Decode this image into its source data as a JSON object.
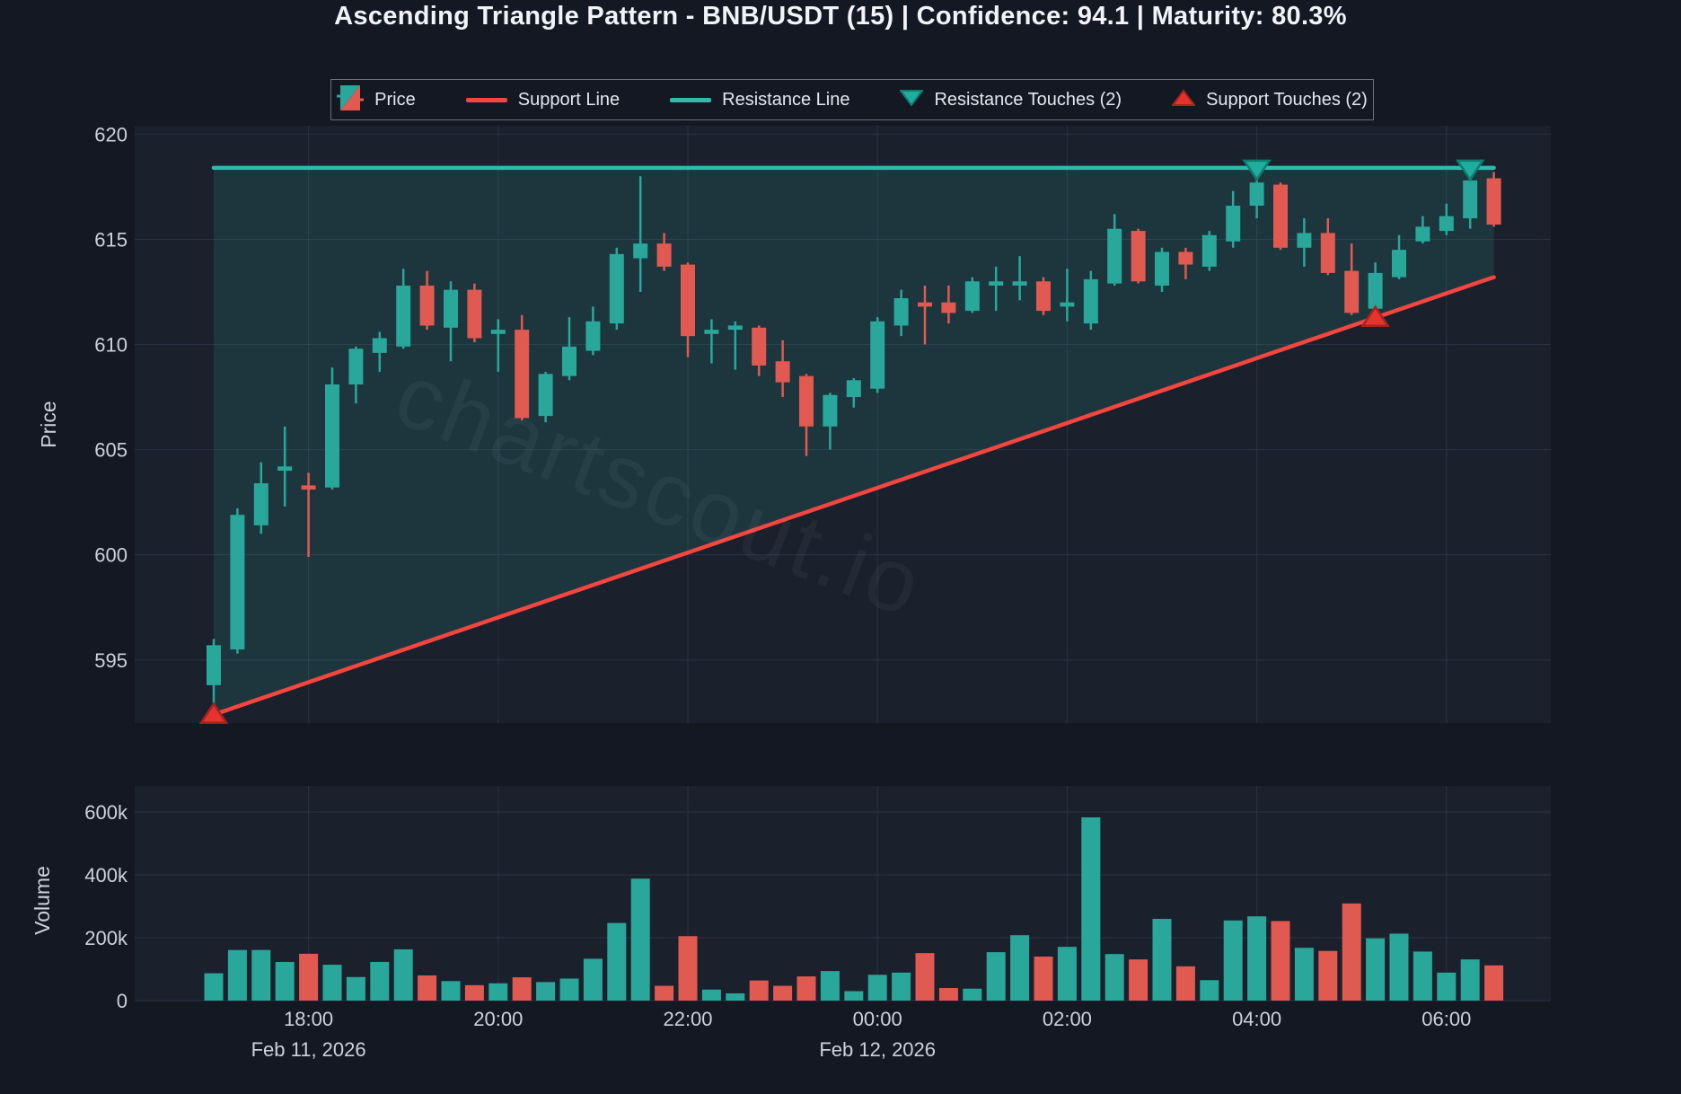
{
  "header": {
    "title": "Ascending Triangle Pattern - BNB/USDT (15) | Confidence: 94.1 | Maturity: 80.3%"
  },
  "legend": {
    "items": [
      {
        "label": "Price",
        "icon": "candlestick-icon"
      },
      {
        "label": "Support Line",
        "icon": "support-line-icon"
      },
      {
        "label": "Resistance Line",
        "icon": "resistance-line-icon"
      },
      {
        "label": "Resistance Touches (2)",
        "icon": "resistance-touch-icon"
      },
      {
        "label": "Support Touches (2)",
        "icon": "support-touch-icon"
      }
    ]
  },
  "watermark": {
    "text": "chartscout.io"
  },
  "colors": {
    "page_bg": "#141823",
    "plot_bg": "#1b212c",
    "grid": "#2a3142",
    "bull": "#2aa79b",
    "bear": "#e05a52",
    "support_line": "#f4453f",
    "resistance_line": "#2cbcac",
    "triangle_fill": "rgba(42,167,155,0.16)",
    "resistance_marker": "#1fae9e",
    "resistance_marker_edge": "#0e7d70",
    "support_marker": "#e5342e",
    "support_marker_edge": "#a8221e",
    "axis_text": "#ccd1dd",
    "title_text": "#f1f3f8"
  },
  "axes": {
    "price_axis": {
      "label": "Price",
      "ticks": [
        {
          "value": 620,
          "label": "620"
        },
        {
          "value": 615,
          "label": "615"
        },
        {
          "value": 610,
          "label": "610"
        },
        {
          "value": 605,
          "label": "605"
        },
        {
          "value": 600,
          "label": "600"
        },
        {
          "value": 595,
          "label": "595"
        }
      ]
    },
    "volume_axis": {
      "label": "Volume",
      "ticks": [
        {
          "value": 600000,
          "label": "600k"
        },
        {
          "value": 400000,
          "label": "400k"
        },
        {
          "value": 200000,
          "label": "200k"
        },
        {
          "value": 0,
          "label": "0"
        }
      ]
    },
    "time_axis": {
      "ticks": [
        {
          "index": 4,
          "label": "18:00"
        },
        {
          "index": 12,
          "label": "20:00"
        },
        {
          "index": 20,
          "label": "22:00"
        },
        {
          "index": 28,
          "label": "00:00"
        },
        {
          "index": 36,
          "label": "02:00"
        },
        {
          "index": 44,
          "label": "04:00"
        },
        {
          "index": 52,
          "label": "06:00"
        }
      ],
      "dates": [
        {
          "index": 4,
          "label": "Feb 11, 2026"
        },
        {
          "index": 28,
          "label": "Feb 12, 2026"
        }
      ]
    }
  },
  "chart_data": {
    "type": "candlestick",
    "title": "Ascending Triangle Pattern - BNB/USDT (15) | Confidence: 94.1 | Maturity: 80.3%",
    "pattern": "Ascending Triangle",
    "confidence": 94.1,
    "maturity_pct": 80.3,
    "price_ylim": [
      592.0,
      620.4
    ],
    "volume_ylim": [
      0,
      683000
    ],
    "resistance_line": {
      "price": 618.4,
      "from_index": 0,
      "to_index": 54
    },
    "support_line": {
      "from_index": 0,
      "from_price": 592.4,
      "to_index": 54,
      "to_price": 613.2
    },
    "resistance_touches": {
      "count": 2,
      "candle_indices": [
        44,
        53
      ]
    },
    "support_touches": {
      "count": 2,
      "candle_indices": [
        0,
        49
      ]
    },
    "candles": [
      {
        "t": "17:00",
        "o": 593.8,
        "h": 596.0,
        "l": 592.5,
        "c": 595.7,
        "v": 87000
      },
      {
        "t": "17:15",
        "o": 595.5,
        "h": 602.2,
        "l": 595.3,
        "c": 601.9,
        "v": 161000
      },
      {
        "t": "17:30",
        "o": 601.4,
        "h": 604.4,
        "l": 601.0,
        "c": 603.4,
        "v": 161000
      },
      {
        "t": "17:45",
        "o": 604.0,
        "h": 606.1,
        "l": 602.3,
        "c": 604.2,
        "v": 123000
      },
      {
        "t": "18:00",
        "o": 603.3,
        "h": 603.9,
        "l": 599.9,
        "c": 603.1,
        "v": 149000
      },
      {
        "t": "18:15",
        "o": 603.2,
        "h": 608.9,
        "l": 603.1,
        "c": 608.1,
        "v": 114000
      },
      {
        "t": "18:30",
        "o": 608.1,
        "h": 609.9,
        "l": 607.2,
        "c": 609.8,
        "v": 75000
      },
      {
        "t": "18:45",
        "o": 609.6,
        "h": 610.6,
        "l": 608.7,
        "c": 610.3,
        "v": 123000
      },
      {
        "t": "19:00",
        "o": 609.9,
        "h": 613.6,
        "l": 609.8,
        "c": 612.8,
        "v": 163000
      },
      {
        "t": "19:15",
        "o": 612.8,
        "h": 613.5,
        "l": 610.7,
        "c": 610.9,
        "v": 80000
      },
      {
        "t": "19:30",
        "o": 610.8,
        "h": 613.0,
        "l": 609.2,
        "c": 612.6,
        "v": 62000
      },
      {
        "t": "19:45",
        "o": 612.6,
        "h": 612.9,
        "l": 610.1,
        "c": 610.3,
        "v": 49000
      },
      {
        "t": "20:00",
        "o": 610.5,
        "h": 611.2,
        "l": 608.7,
        "c": 610.7,
        "v": 55000
      },
      {
        "t": "20:15",
        "o": 610.7,
        "h": 611.4,
        "l": 606.4,
        "c": 606.5,
        "v": 74000
      },
      {
        "t": "20:30",
        "o": 606.6,
        "h": 608.7,
        "l": 606.3,
        "c": 608.6,
        "v": 59000
      },
      {
        "t": "20:45",
        "o": 608.5,
        "h": 611.3,
        "l": 608.3,
        "c": 609.9,
        "v": 70000
      },
      {
        "t": "21:00",
        "o": 609.7,
        "h": 611.8,
        "l": 609.5,
        "c": 611.1,
        "v": 133000
      },
      {
        "t": "21:15",
        "o": 611.0,
        "h": 614.6,
        "l": 610.7,
        "c": 614.3,
        "v": 247000
      },
      {
        "t": "21:30",
        "o": 614.1,
        "h": 618.0,
        "l": 612.5,
        "c": 614.8,
        "v": 388000
      },
      {
        "t": "21:45",
        "o": 614.8,
        "h": 615.3,
        "l": 613.5,
        "c": 613.7,
        "v": 47000
      },
      {
        "t": "22:00",
        "o": 613.8,
        "h": 613.9,
        "l": 609.4,
        "c": 610.4,
        "v": 205000
      },
      {
        "t": "22:15",
        "o": 610.5,
        "h": 611.2,
        "l": 609.1,
        "c": 610.7,
        "v": 35000
      },
      {
        "t": "22:30",
        "o": 610.7,
        "h": 611.1,
        "l": 608.8,
        "c": 610.9,
        "v": 23000
      },
      {
        "t": "22:45",
        "o": 610.8,
        "h": 610.9,
        "l": 608.5,
        "c": 609.0,
        "v": 64000
      },
      {
        "t": "23:00",
        "o": 609.2,
        "h": 610.2,
        "l": 607.5,
        "c": 608.2,
        "v": 47000
      },
      {
        "t": "23:15",
        "o": 608.5,
        "h": 608.6,
        "l": 604.7,
        "c": 606.1,
        "v": 77000
      },
      {
        "t": "23:30",
        "o": 606.1,
        "h": 607.7,
        "l": 605.0,
        "c": 607.6,
        "v": 94000
      },
      {
        "t": "23:45",
        "o": 607.5,
        "h": 608.4,
        "l": 607.0,
        "c": 608.3,
        "v": 30000
      },
      {
        "t": "00:00",
        "o": 607.9,
        "h": 611.3,
        "l": 607.7,
        "c": 611.1,
        "v": 82000
      },
      {
        "t": "00:15",
        "o": 610.9,
        "h": 612.6,
        "l": 610.4,
        "c": 612.2,
        "v": 89000
      },
      {
        "t": "00:30",
        "o": 612.0,
        "h": 612.8,
        "l": 610.0,
        "c": 611.8,
        "v": 151000
      },
      {
        "t": "00:45",
        "o": 612.0,
        "h": 612.8,
        "l": 611.0,
        "c": 611.5,
        "v": 40000
      },
      {
        "t": "01:00",
        "o": 611.6,
        "h": 613.2,
        "l": 611.5,
        "c": 613.0,
        "v": 38000
      },
      {
        "t": "01:15",
        "o": 612.8,
        "h": 613.7,
        "l": 611.6,
        "c": 613.0,
        "v": 154000
      },
      {
        "t": "01:30",
        "o": 612.8,
        "h": 614.2,
        "l": 612.1,
        "c": 613.0,
        "v": 208000
      },
      {
        "t": "01:45",
        "o": 613.0,
        "h": 613.2,
        "l": 611.4,
        "c": 611.6,
        "v": 140000
      },
      {
        "t": "02:00",
        "o": 611.8,
        "h": 613.6,
        "l": 611.1,
        "c": 612.0,
        "v": 171000
      },
      {
        "t": "02:15",
        "o": 611.0,
        "h": 613.5,
        "l": 610.7,
        "c": 613.1,
        "v": 583000
      },
      {
        "t": "02:30",
        "o": 612.9,
        "h": 616.2,
        "l": 612.8,
        "c": 615.5,
        "v": 148000
      },
      {
        "t": "02:45",
        "o": 615.4,
        "h": 615.5,
        "l": 612.9,
        "c": 613.0,
        "v": 131000
      },
      {
        "t": "03:00",
        "o": 612.8,
        "h": 614.6,
        "l": 612.5,
        "c": 614.4,
        "v": 260000
      },
      {
        "t": "03:15",
        "o": 614.4,
        "h": 614.6,
        "l": 613.1,
        "c": 613.8,
        "v": 109000
      },
      {
        "t": "03:30",
        "o": 613.7,
        "h": 615.4,
        "l": 613.5,
        "c": 615.2,
        "v": 65000
      },
      {
        "t": "03:45",
        "o": 614.9,
        "h": 617.3,
        "l": 614.6,
        "c": 616.6,
        "v": 255000
      },
      {
        "t": "04:00",
        "o": 616.6,
        "h": 618.3,
        "l": 616.0,
        "c": 617.7,
        "v": 268000
      },
      {
        "t": "04:15",
        "o": 617.6,
        "h": 617.7,
        "l": 614.5,
        "c": 614.6,
        "v": 253000
      },
      {
        "t": "04:30",
        "o": 614.6,
        "h": 616.0,
        "l": 613.7,
        "c": 615.3,
        "v": 168000
      },
      {
        "t": "04:45",
        "o": 615.3,
        "h": 616.0,
        "l": 613.3,
        "c": 613.4,
        "v": 158000
      },
      {
        "t": "05:00",
        "o": 613.5,
        "h": 614.8,
        "l": 611.4,
        "c": 611.5,
        "v": 309000
      },
      {
        "t": "05:15",
        "o": 611.7,
        "h": 613.9,
        "l": 611.2,
        "c": 613.4,
        "v": 198000
      },
      {
        "t": "05:30",
        "o": 613.2,
        "h": 615.2,
        "l": 613.1,
        "c": 614.5,
        "v": 213000
      },
      {
        "t": "05:45",
        "o": 614.9,
        "h": 616.1,
        "l": 614.8,
        "c": 615.6,
        "v": 156000
      },
      {
        "t": "06:00",
        "o": 615.4,
        "h": 616.7,
        "l": 615.2,
        "c": 616.1,
        "v": 89000
      },
      {
        "t": "06:15",
        "o": 616.0,
        "h": 618.2,
        "l": 615.5,
        "c": 617.8,
        "v": 131000
      },
      {
        "t": "06:30",
        "o": 617.9,
        "h": 618.2,
        "l": 615.6,
        "c": 615.7,
        "v": 112000
      }
    ]
  }
}
